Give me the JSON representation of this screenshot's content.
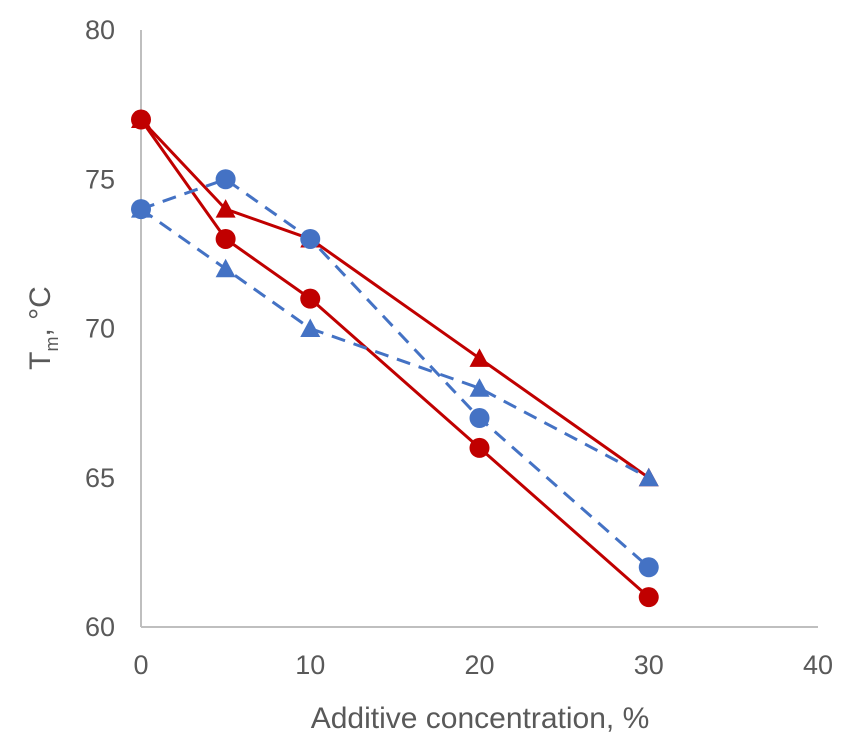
{
  "chart_data": {
    "type": "line",
    "xlabel": "Additive concentration, %",
    "ylabel": {
      "main": "T",
      "sub": "m",
      "rest": ", °C"
    },
    "xlim": [
      0,
      40
    ],
    "ylim": [
      60,
      80
    ],
    "xticks": [
      0,
      10,
      20,
      30,
      40
    ],
    "yticks": [
      60,
      65,
      70,
      75,
      80
    ],
    "grid": false,
    "legend": "none",
    "series": [
      {
        "marker": "triangle",
        "color": "#c00000",
        "line_style": "solid",
        "x": [
          0,
          5,
          10,
          20,
          30
        ],
        "y": [
          77,
          74,
          73,
          69,
          65
        ]
      },
      {
        "marker": "circle",
        "color": "#c00000",
        "line_style": "solid",
        "x": [
          0,
          5,
          10,
          20,
          30
        ],
        "y": [
          77,
          73,
          71,
          66,
          61
        ]
      },
      {
        "marker": "circle",
        "color": "#4472c4",
        "line_style": "dashed",
        "x": [
          0,
          5,
          10,
          20,
          30
        ],
        "y": [
          74,
          75,
          73,
          67,
          62
        ]
      },
      {
        "marker": "triangle",
        "color": "#4472c4",
        "line_style": "dashed",
        "x": [
          0,
          5,
          10,
          20,
          30
        ],
        "y": [
          74,
          72,
          70,
          68,
          65
        ]
      }
    ]
  }
}
